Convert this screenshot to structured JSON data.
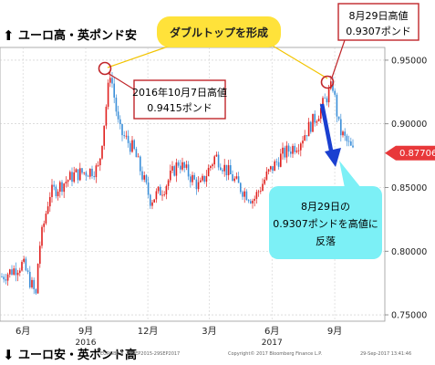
{
  "header": {
    "up_arrow_glyph": "⬆",
    "top_label": "ユーロ高・英ポンド安",
    "down_arrow_glyph": "⬇",
    "bottom_label": "ユーロ安・英ポンド高"
  },
  "callouts": {
    "double_top": "ダブルトップを形成",
    "peak_oct_line1": "2016年10月7日高値",
    "peak_oct_line2": "0.9415ポンド",
    "peak_aug_line1": "8月29日高値",
    "peak_aug_line2": "0.9307ポンド",
    "reversal_line1": "8月29日の",
    "reversal_line2": "0.9307ポンドを高値に",
    "reversal_line3": "反落"
  },
  "footer": {
    "copyright": "Copyright© 2017 Bloomberg Finance L.P.",
    "timestamp": "29-Sep-2017 13:41:46",
    "source_left": "EURGBP 8 ·29SEP2015-29SEP2017"
  },
  "colors": {
    "up_candle": "#e0201e",
    "down_candle": "#3a8ed8",
    "bluearrow": "#1a3fd0",
    "callout_border": "#c0262a",
    "yellow": "#ffe23a",
    "cyan": "#7cf0f6",
    "last_price": "#e8383a"
  },
  "chart_data": {
    "type": "candlestick",
    "title": "",
    "xlabel": "",
    "ylabel": "",
    "x_ticks": [
      "6月",
      "9月",
      "12月",
      "3月",
      "6月",
      "9月"
    ],
    "year_labels": [
      "2016",
      "2017"
    ],
    "y_ticks": [
      "0.95000",
      "0.90000",
      "0.85000",
      "0.80000",
      "0.75000"
    ],
    "ylim": [
      0.745,
      0.96
    ],
    "last_price": "0.87706",
    "highlights": [
      {
        "date": "2016-10-07",
        "value": 0.9415
      },
      {
        "date": "2017-08-29",
        "value": 0.9307
      }
    ],
    "series_key_points": [
      {
        "date": "2016-05-01",
        "value": 0.78
      },
      {
        "date": "2016-06-01",
        "value": 0.79
      },
      {
        "date": "2016-06-20",
        "value": 0.765
      },
      {
        "date": "2016-06-24",
        "value": 0.8
      },
      {
        "date": "2016-07-10",
        "value": 0.845
      },
      {
        "date": "2016-08-15",
        "value": 0.86
      },
      {
        "date": "2016-09-20",
        "value": 0.865
      },
      {
        "date": "2016-10-07",
        "value": 0.9415
      },
      {
        "date": "2016-10-20",
        "value": 0.895
      },
      {
        "date": "2016-11-10",
        "value": 0.88
      },
      {
        "date": "2016-12-05",
        "value": 0.84
      },
      {
        "date": "2016-12-25",
        "value": 0.85
      },
      {
        "date": "2017-01-15",
        "value": 0.87
      },
      {
        "date": "2017-02-15",
        "value": 0.85
      },
      {
        "date": "2017-03-10",
        "value": 0.875
      },
      {
        "date": "2017-04-15",
        "value": 0.85
      },
      {
        "date": "2017-05-05",
        "value": 0.84
      },
      {
        "date": "2017-05-25",
        "value": 0.86
      },
      {
        "date": "2017-06-15",
        "value": 0.875
      },
      {
        "date": "2017-07-10",
        "value": 0.885
      },
      {
        "date": "2017-08-10",
        "value": 0.91
      },
      {
        "date": "2017-08-29",
        "value": 0.9307
      },
      {
        "date": "2017-09-08",
        "value": 0.895
      },
      {
        "date": "2017-09-29",
        "value": 0.877
      }
    ]
  }
}
